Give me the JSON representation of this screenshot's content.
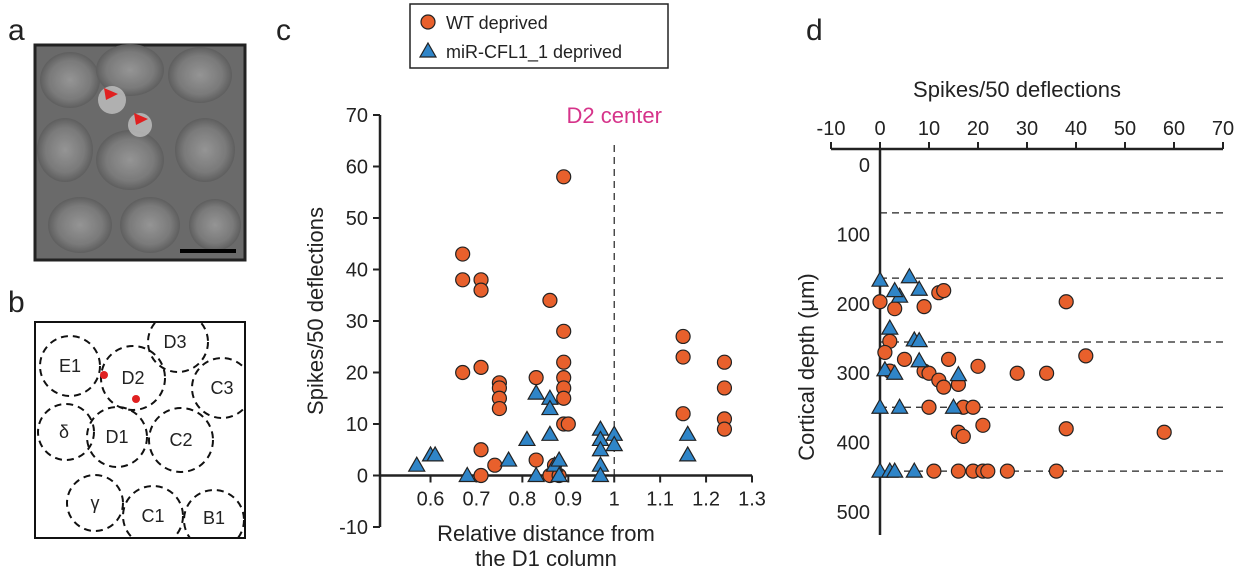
{
  "panel_labels": [
    "a",
    "b",
    "c",
    "d"
  ],
  "barrel_map": {
    "labels": [
      "E1",
      "D2",
      "D3",
      "C3",
      "δ",
      "D1",
      "C2",
      "γ",
      "C1",
      "B1"
    ]
  },
  "chart_data": [
    {
      "type": "scatter",
      "y_label": "Spikes/50 deflections",
      "x_label": [
        "Relative distance from",
        "the D1 column"
      ],
      "xlim": [
        0.49,
        1.3
      ],
      "ylim": [
        -10,
        70
      ],
      "xticks": [
        0.6,
        0.7,
        0.8,
        0.9,
        1,
        1.1,
        1.2,
        1.3
      ],
      "yticks": [
        -10,
        0,
        10,
        20,
        30,
        40,
        50,
        60,
        70
      ],
      "annotation": {
        "text": "D2 center",
        "x": 1
      },
      "legend": "top",
      "series": [
        {
          "name": "WT deprived",
          "color": "#e8602c",
          "marker": "circle",
          "x": [
            0.67,
            0.67,
            0.71,
            0.71,
            0.71,
            0.67,
            0.75,
            0.75,
            0.75,
            0.75,
            0.71,
            0.71,
            0.74,
            0.83,
            0.83,
            0.86,
            0.89,
            0.89,
            0.89,
            0.89,
            0.89,
            0.89,
            0.89,
            0.9,
            0.87,
            0.86,
            0.88,
            1.15,
            1.15,
            1.15,
            1.24,
            1.24,
            1.24,
            1.24
          ],
          "values": [
            43,
            38,
            38,
            36,
            21,
            20,
            18,
            17,
            15,
            13,
            5,
            0,
            2,
            19,
            3,
            34,
            58,
            28,
            22,
            19,
            17,
            15,
            10,
            10,
            2,
            0,
            0,
            27,
            23,
            12,
            22,
            17,
            11,
            9
          ]
        },
        {
          "name": "miR-CFL1_1 deprived",
          "color": "#2f85c8",
          "marker": "triangle",
          "x": [
            0.57,
            0.6,
            0.61,
            0.68,
            0.77,
            0.81,
            0.83,
            0.86,
            0.86,
            0.86,
            0.83,
            0.87,
            0.88,
            0.88,
            0.97,
            0.97,
            0.97,
            0.97,
            0.97,
            1.0,
            1.0,
            1.16,
            1.16
          ],
          "values": [
            2,
            4,
            4,
            0,
            3,
            7,
            16,
            15,
            13,
            8,
            0,
            2,
            3,
            0,
            9,
            7,
            5,
            2,
            0,
            8,
            6,
            8,
            4
          ]
        }
      ]
    },
    {
      "type": "scatter",
      "x_label": "Spikes/50 deflections",
      "y_label": "Cortical depth (μm)",
      "x_axis": "top",
      "y_inverted": true,
      "xlim": [
        -10,
        70
      ],
      "ylim": [
        -23,
        533
      ],
      "xticks": [
        -10,
        0,
        10,
        20,
        30,
        40,
        50,
        60,
        70
      ],
      "yticks": [
        0,
        100,
        200,
        300,
        400,
        500
      ],
      "reference_lines": [
        69,
        163,
        255,
        349,
        441
      ],
      "series": [
        {
          "name": "WT deprived",
          "color": "#e8602c",
          "marker": "circle",
          "x": [
            0,
            3,
            2,
            1,
            2,
            12,
            13,
            38,
            9,
            5,
            9,
            10,
            12,
            13,
            16,
            14,
            20,
            28,
            34,
            42,
            10,
            17,
            19,
            21,
            16,
            17,
            38,
            58,
            11,
            16,
            19,
            21,
            22,
            26,
            36
          ],
          "values": [
            197,
            207,
            254,
            270,
            297,
            184,
            181,
            197,
            204,
            280,
            297,
            300,
            310,
            320,
            316,
            280,
            290,
            300,
            300,
            275,
            349,
            349,
            349,
            375,
            385,
            391,
            380,
            385,
            441,
            441,
            441,
            441,
            441,
            441,
            441
          ]
        },
        {
          "name": "miR-CFL1_1 deprived",
          "color": "#2f85c8",
          "marker": "triangle",
          "x": [
            0,
            6,
            8,
            4,
            3,
            2,
            7,
            8,
            8,
            1,
            3,
            16,
            0,
            4,
            15,
            0,
            2,
            3,
            7
          ],
          "values": [
            166,
            161,
            179,
            189,
            181,
            235,
            252,
            253,
            282,
            295,
            300,
            302,
            349,
            349,
            349,
            441,
            441,
            441,
            441
          ]
        }
      ]
    }
  ]
}
